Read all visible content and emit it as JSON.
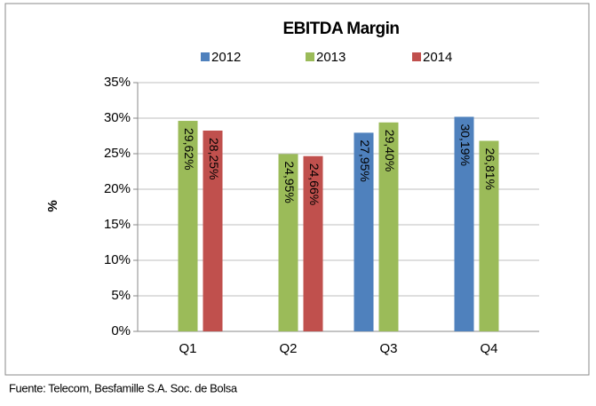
{
  "chart_data": {
    "type": "bar",
    "title": "EBITDA Margin",
    "y_label": "%",
    "source": "Fuente: Telecom, Besfamille S.A. Soc. de Bolsa",
    "categories": [
      "Q1",
      "Q2",
      "Q3",
      "Q4"
    ],
    "series": [
      {
        "name": "2012",
        "color": "#4f81bd",
        "values": [
          null,
          null,
          27.95,
          30.19
        ],
        "value_labels": [
          null,
          null,
          "27,95%",
          "30,19%"
        ]
      },
      {
        "name": "2013",
        "color": "#9bbb59",
        "values": [
          29.62,
          24.95,
          29.4,
          26.81
        ],
        "value_labels": [
          "29,62%",
          "24,95%",
          "29,40%",
          "26,81%"
        ]
      },
      {
        "name": "2014",
        "color": "#c0504d",
        "values": [
          28.25,
          24.66,
          null,
          null
        ],
        "value_labels": [
          "28,25%",
          "24,66%",
          null,
          null
        ]
      }
    ],
    "ylim": [
      0,
      35
    ],
    "yticks": [
      {
        "value": 0,
        "label": "0%"
      },
      {
        "value": 5,
        "label": "5%"
      },
      {
        "value": 10,
        "label": "10%"
      },
      {
        "value": 15,
        "label": "15%"
      },
      {
        "value": 20,
        "label": "20%"
      },
      {
        "value": 25,
        "label": "25%"
      },
      {
        "value": 30,
        "label": "30%"
      },
      {
        "value": 35,
        "label": "35%"
      }
    ],
    "grid": true,
    "legend": "top"
  }
}
